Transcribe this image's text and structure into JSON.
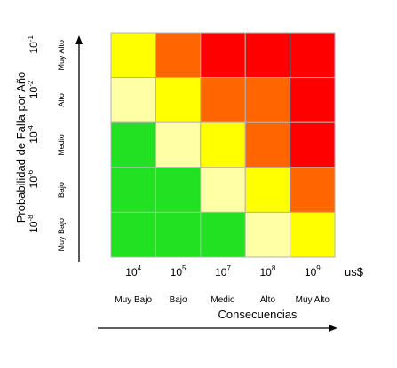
{
  "chart_data": {
    "type": "heatmap",
    "title": "",
    "xlabel": "Consecuencias",
    "ylabel": "Probabilidad de Falla por Año",
    "x_unit": "us$",
    "x_categories": [
      "Muy Bajo",
      "Bajo",
      "Medio",
      "Alto",
      "Muy Alto"
    ],
    "x_values": [
      {
        "base": "10",
        "exp": "4"
      },
      {
        "base": "10",
        "exp": "5"
      },
      {
        "base": "10",
        "exp": "7"
      },
      {
        "base": "10",
        "exp": "8"
      },
      {
        "base": "10",
        "exp": "9"
      }
    ],
    "y_categories": [
      "Muy Alto",
      "Alto",
      "Medio",
      "Bajo",
      "Muy Bajo"
    ],
    "y_values": [
      {
        "base": "10",
        "exp": "-1"
      },
      {
        "base": "10",
        "exp": "-2"
      },
      {
        "base": "10",
        "exp": "-4"
      },
      {
        "base": "10",
        "exp": "-6"
      },
      {
        "base": "10",
        "exp": "-8"
      }
    ],
    "cells": [
      [
        "yellow",
        "orange",
        "red",
        "red",
        "red"
      ],
      [
        "light-yellow",
        "yellow",
        "orange",
        "orange",
        "red"
      ],
      [
        "green",
        "light-yellow",
        "yellow",
        "orange",
        "red"
      ],
      [
        "green",
        "green",
        "light-yellow",
        "yellow",
        "orange"
      ],
      [
        "green",
        "green",
        "green",
        "light-yellow",
        "yellow"
      ]
    ],
    "colors": {
      "green": "#22e022",
      "light-yellow": "#ffffa6",
      "yellow": "#ffff00",
      "orange": "#ff6600",
      "red": "#ff0000"
    },
    "grid_color": "#b3b3b3"
  }
}
